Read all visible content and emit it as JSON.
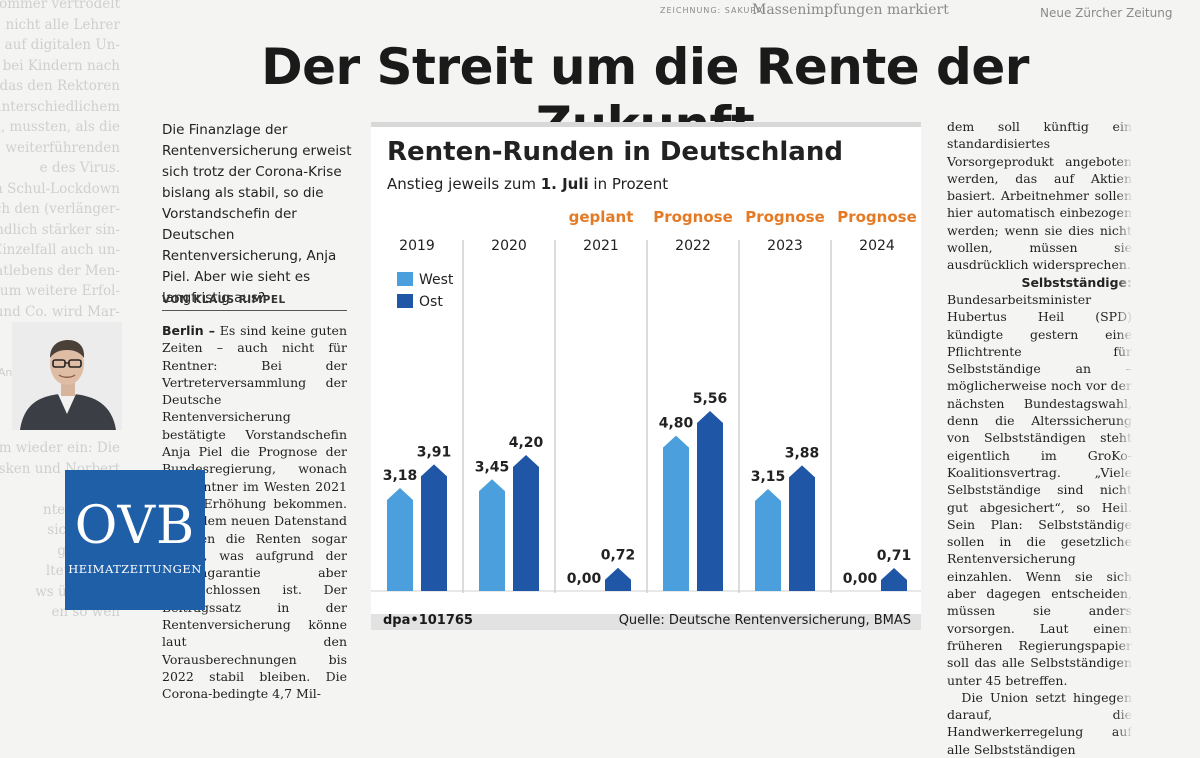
{
  "left_column": {
    "lines_top": [
      "Sommer vertrödelt",
      "nicht alle Lehrer",
      "eit auf digitalen Un-",
      "alls bei Kindern nach",
      "k das den Rektoren",
      "unterschiedlichem",
      "en, mussten, als die",
      "weiterführenden",
      "e des Virus.",
      "hm Schul-Lockdown",
      "rich den (verlänger-",
      "endlich stärker sin-",
      "Einzelfall auch un-",
      "atlebens der Men-",
      "taum weitere Erfol-",
      "a und Co. wird Mar-",
      "drucken.",
      "",
      "g.Anastasiadis@ovb.net"
    ],
    "lines_bottom": [
      "em wieder ein: Die",
      "Esken und Norbert",
      "Grünen",
      "nten Duo B",
      "sich das in",
      "gewählte",
      "ltet zurück",
      "ws überbote",
      "en so wen",
      "",
      "ein verni",
      "e SPD ist keine nor-"
    ]
  },
  "top_strip": {
    "credit": "ZEICHNUNG: SAKURAI",
    "caption": "Massenimpfungen markiert",
    "source": "Neue Zürcher Zeitung"
  },
  "headline": "Der Streit um die Rente der Zukunft",
  "teaser": "Die Finanzlage der Rentenversicherung erweist sich trotz der Corona-Krise bislang als stabil, so die Vorstandschefin der Deutschen Rentenversicherung, Anja Piel. Aber wie sieht es langfristig aus?",
  "byline": "VON KLAUS RIMPEL",
  "body_left": {
    "dateline": "Berlin –",
    "text": "Es sind keine guten Zeiten – auch nicht für Rentner: Bei der Vertreterversammlung der Deutsche Rentenversicherung bestätigte Vorstandschefin Anja Piel die Prognose der Bundesregierung, wonach die Rentner im Westen 2021 keine Erhöhung bekommen. Nach dem neuen Datenstand müssten die Renten sogar sinken, was aufgrund der Rentengarantie aber ausgeschlossen ist. Der Beitragssatz in der Rentenversicherung könne laut den Vorausberechnungen bis 2022 stabil bleiben. Die Corona-bedingte 4,7 Mil-"
  },
  "body_right": {
    "p1": "dem soll künftig ein standardisiertes Vorsorgeprodukt angeboten werden, das auf Aktien basiert. Arbeitnehmer sollen hier automatisch einbezogen werden; wenn sie dies nicht wollen, müssen sie ausdrücklich widersprechen.",
    "p2_lead": "Selbstständige:",
    "p2": "Bundesarbeitsminister Hubertus Heil (SPD) kündigte gestern eine Pflichtrente für Selbstständige an – möglicherweise noch vor der nächsten Bundestagswahl, denn die Alterssicherung von Selbstständigen steht eigentlich im GroKo-Koalitionsvertrag. „Viele Selbstständige sind nicht gut abgesichert“, so Heil. Sein Plan: Selbstständige sollen in die gesetzliche Rentenversicherung einzahlen. Wenn sie sich aber dagegen entscheiden, müssen sie anders vorsorgen. Laut einem früheren Regierungspapier soll das alle Selbstständigen unter 45 betreffen.",
    "p3": "Die Union setzt hingegen darauf, die Handwerkerregelung auf alle Selbstständigen"
  },
  "logo": {
    "big": "OVB",
    "small": "HEIMATZEITUNGEN"
  },
  "colors": {
    "west": "#4a9fdc",
    "ost": "#1f56a6",
    "tag": "#e57a25",
    "logo_bg": "#1f5fa8"
  },
  "chart_data": {
    "type": "bar",
    "title": "Renten-Runden in Deutschland",
    "subtitle_pre": "Anstieg jeweils zum",
    "subtitle_bold": "1. Juli",
    "subtitle_post": "in Prozent",
    "categories": [
      "2019",
      "2020",
      "2021",
      "2022",
      "2023",
      "2024"
    ],
    "tags": [
      "",
      "",
      "geplant",
      "Prognose",
      "Prognose",
      "Prognose"
    ],
    "series": [
      {
        "name": "West",
        "values": [
          3.18,
          3.45,
          0.0,
          4.8,
          3.15,
          0.0
        ],
        "labels": [
          "3,18",
          "3,45",
          "0,00",
          "4,80",
          "3,15",
          "0,00"
        ]
      },
      {
        "name": "Ost",
        "values": [
          3.91,
          4.2,
          0.72,
          5.56,
          3.88,
          0.71
        ],
        "labels": [
          "3,91",
          "4,20",
          "0,72",
          "5,56",
          "3,88",
          "0,71"
        ]
      }
    ],
    "ylim": [
      0,
      5.56
    ],
    "grid": false,
    "legend": "top-left",
    "footer_left": "dpa•101765",
    "footer_right": "Quelle: Deutsche Rentenversicherung, BMAS"
  }
}
